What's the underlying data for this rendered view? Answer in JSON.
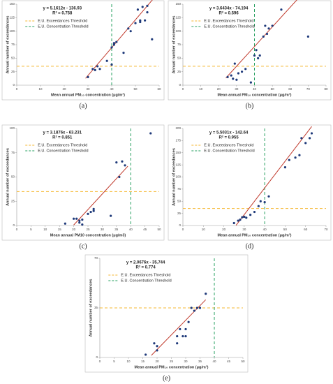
{
  "chart_data": [
    {
      "type": "scatter",
      "caption": "(a)",
      "equation": "y = 5.1612x - 136.93",
      "r2": "R² = 0.758",
      "xlabel": "Mean annual PM₁₀ concentration (μg/m³)",
      "ylabel": "Annual number of exceedances",
      "x": [
        30,
        32,
        33,
        34,
        35,
        38,
        40,
        40,
        41,
        41,
        42,
        45,
        47,
        48,
        50,
        51,
        52,
        53,
        54,
        55,
        55,
        57,
        52
      ],
      "values": [
        15,
        30,
        28,
        35,
        30,
        45,
        38,
        70,
        75,
        78,
        80,
        60,
        105,
        100,
        115,
        140,
        120,
        145,
        120,
        147,
        135,
        85,
        117
      ],
      "color": "#1f3a7a",
      "xlim": [
        0,
        60
      ],
      "xticks": [
        0,
        10,
        20,
        30,
        40,
        50,
        60
      ],
      "ylim": [
        0,
        150
      ],
      "yticks": [
        0,
        25,
        50,
        75,
        100,
        125,
        150
      ],
      "trendline": {
        "slope": 5.1612,
        "intercept": -136.93,
        "x": [
          29,
          58
        ],
        "color": "#c0392b"
      },
      "thresholds": [
        {
          "name": "E.U. Exceedances Threshold",
          "axis": "y",
          "value": 35,
          "color": "#f5b731"
        },
        {
          "name": "E.U. Concentration Threshold",
          "axis": "x",
          "value": 40,
          "color": "#27a060"
        }
      ]
    },
    {
      "type": "scatter",
      "caption": "(b)",
      "equation": "y = 3.6434x - 74.194",
      "r2": "R² = 0.596",
      "xlabel": "Mean annual PM₁₀ concentration (μg/m³)",
      "ylabel": "Annual number of exceedances",
      "x": [
        25,
        27,
        28,
        29,
        30,
        31,
        33,
        35,
        38,
        40,
        41,
        42,
        43,
        45,
        46,
        47,
        48,
        50,
        55,
        70
      ],
      "values": [
        15,
        18,
        12,
        40,
        10,
        22,
        25,
        30,
        5,
        55,
        65,
        50,
        55,
        90,
        110,
        95,
        105,
        110,
        140,
        90
      ],
      "color": "#1f3a7a",
      "xlim": [
        0,
        80
      ],
      "xticks": [
        0,
        10,
        20,
        30,
        40,
        50,
        60,
        70,
        80
      ],
      "ylim": [
        0,
        150
      ],
      "yticks": [
        0,
        25,
        50,
        75,
        100,
        125,
        150
      ],
      "trendline": {
        "slope": 3.6434,
        "intercept": -74.194,
        "x": [
          24,
          70
        ],
        "color": "#c0392b"
      },
      "thresholds": [
        {
          "name": "E.U. Exceedances Threshold",
          "axis": "y",
          "value": 35,
          "color": "#f5b731"
        },
        {
          "name": "E.U. Concentration Threshold",
          "axis": "x",
          "value": 40,
          "color": "#27a060"
        }
      ]
    },
    {
      "type": "scatter",
      "caption": "(c)",
      "equation": "y = 3.1876x - 63.231",
      "r2": "R² = 0.851",
      "xlabel": "Mean annual PM10 concentration (μg/m3)",
      "ylabel": "Annual number of exceedances",
      "x": [
        17,
        20,
        21,
        22,
        22,
        23,
        23,
        25,
        26,
        27,
        27,
        33,
        35,
        36,
        37,
        38,
        47
      ],
      "values": [
        2,
        7,
        7,
        5,
        3,
        6,
        1,
        12,
        14,
        15,
        17,
        10,
        65,
        50,
        66,
        62,
        95
      ],
      "color": "#1f3a7a",
      "xlim": [
        0,
        50
      ],
      "xticks": [
        0,
        5,
        10,
        15,
        20,
        25,
        30,
        35,
        40,
        45,
        50
      ],
      "ylim": [
        0,
        100
      ],
      "yticks": [
        0,
        25,
        50,
        75,
        100
      ],
      "trendline": {
        "slope": 3.1876,
        "intercept": -63.231,
        "x": [
          20,
          39
        ],
        "color": "#c0392b"
      },
      "thresholds": [
        {
          "name": "E.U. Exceedances Threshold",
          "axis": "y",
          "value": 35,
          "color": "#f5b731"
        },
        {
          "name": "E.U. Concentration Threshold",
          "axis": "x",
          "value": 40,
          "color": "#27a060"
        }
      ]
    },
    {
      "type": "scatter",
      "caption": "(d)",
      "equation": "y = 5.5031x - 142.64",
      "r2": "R² = 0.955",
      "xlabel": "Mean annual PM₁₀ concentration (μg/m³)",
      "ylabel": "Annual number of exceedances",
      "x": [
        25,
        27,
        28,
        29,
        30,
        31,
        33,
        35,
        37,
        38,
        40,
        42,
        50,
        52,
        55,
        57,
        58,
        60,
        62,
        63
      ],
      "values": [
        5,
        10,
        12,
        17,
        18,
        16,
        22,
        28,
        40,
        50,
        48,
        60,
        120,
        135,
        140,
        145,
        180,
        170,
        180,
        190
      ],
      "color": "#1f3a7a",
      "xlim": [
        0,
        70
      ],
      "xticks": [
        0,
        10,
        20,
        30,
        40,
        50,
        60,
        70
      ],
      "ylim": [
        0,
        200
      ],
      "yticks": [
        0,
        25,
        50,
        75,
        100,
        125,
        150,
        175,
        200
      ],
      "trendline": {
        "slope": 5.5031,
        "intercept": -142.64,
        "x": [
          26,
          63
        ],
        "color": "#c0392b"
      },
      "thresholds": [
        {
          "name": "E.U. Exceedances Threshold",
          "axis": "y",
          "value": 35,
          "color": "#f5b731"
        },
        {
          "name": "E.U. Concentration Threshold",
          "axis": "x",
          "value": 40,
          "color": "#27a060"
        }
      ]
    },
    {
      "type": "scatter",
      "caption": "(e)",
      "equation": "y = 2.0676x - 35.744",
      "r2": "R² = 0.774",
      "xlabel": "Mean annual PM₁₀ concentration (μg/m³)",
      "ylabel": "Annual number of exceedances",
      "x": [
        16,
        19,
        20,
        20,
        27,
        27,
        28,
        29,
        30,
        30,
        31,
        32,
        33,
        34,
        35,
        37
      ],
      "values": [
        2,
        10,
        8,
        5,
        15,
        10,
        20,
        15,
        20,
        15,
        25,
        35,
        33,
        35,
        35,
        45
      ],
      "color": "#1f3a7a",
      "xlim": [
        0,
        50
      ],
      "xticks": [
        0,
        5,
        10,
        15,
        20,
        25,
        30,
        35,
        40,
        45,
        50
      ],
      "ylim": [
        0,
        70
      ],
      "yticks": [
        0,
        35,
        70
      ],
      "trendline": {
        "slope": 2.0676,
        "intercept": -35.744,
        "x": [
          18,
          37
        ],
        "color": "#c0392b"
      },
      "thresholds": [
        {
          "name": "E.U. Exceedances Threshold",
          "axis": "y",
          "value": 35,
          "color": "#f5b731"
        },
        {
          "name": "E.U. Concentration Threshold",
          "axis": "x",
          "value": 40,
          "color": "#27a060"
        }
      ]
    }
  ]
}
